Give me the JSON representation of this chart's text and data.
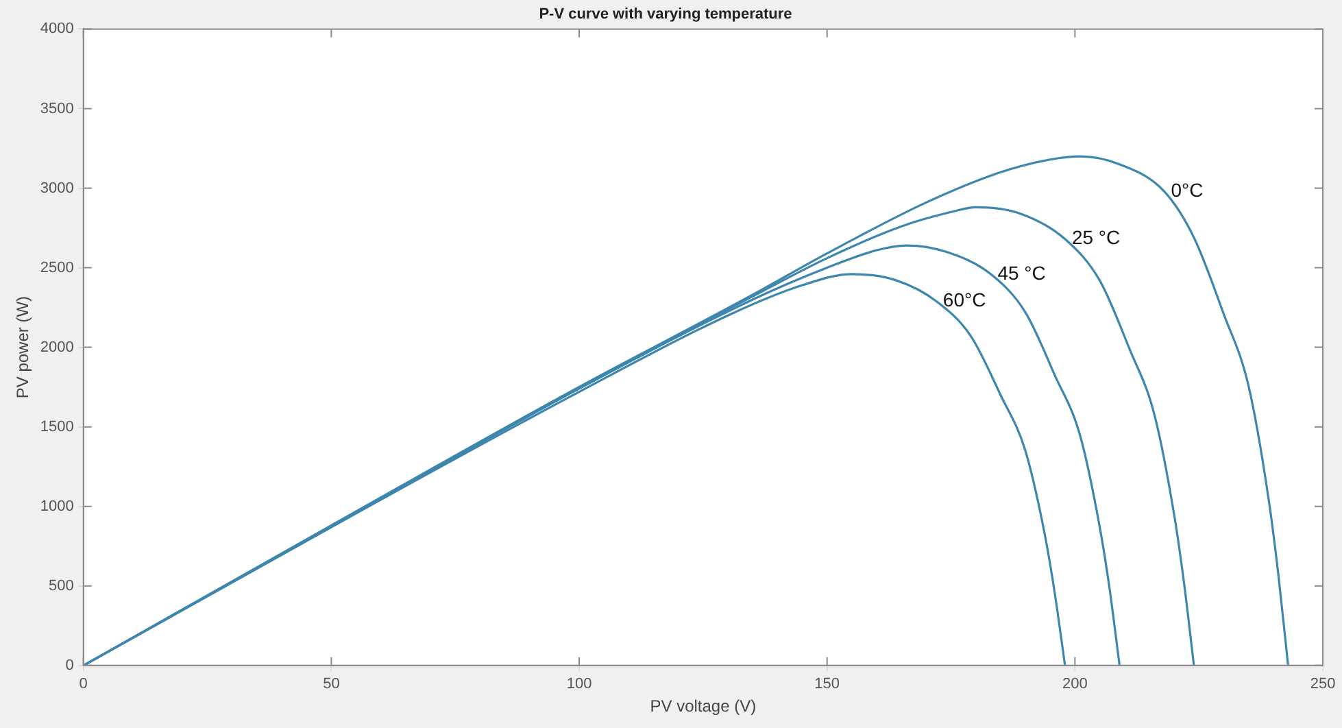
{
  "chart_data": {
    "type": "line",
    "title": "P-V curve with varying temperature",
    "xlabel": "PV voltage (V)",
    "ylabel": "PV power (W)",
    "xlim": [
      0,
      250
    ],
    "xticks": [
      0,
      50,
      100,
      150,
      200,
      250
    ],
    "ylim": [
      0,
      4000
    ],
    "yticks": [
      0,
      500,
      1000,
      1500,
      2000,
      2500,
      3000,
      3500,
      4000
    ],
    "grid": false,
    "legend": false,
    "marker": "none",
    "line_style": "solid",
    "series": [
      {
        "name": "0°C",
        "color": "#3d86ad",
        "x": [
          0,
          50,
          100,
          135,
          150,
          170,
          185,
          195,
          201,
          209,
          218,
          224,
          230,
          235,
          239,
          241,
          243
        ],
        "values": [
          0,
          880,
          1750,
          2330,
          2590,
          2910,
          3100,
          3180,
          3200,
          3150,
          2980,
          2690,
          2210,
          1760,
          1060,
          580,
          0
        ]
      },
      {
        "name": "25 °C",
        "color": "#3d86ad",
        "x": [
          0,
          50,
          100,
          135,
          150,
          165,
          175,
          180,
          189,
          198,
          205,
          211,
          216,
          220,
          222,
          224
        ],
        "values": [
          0,
          880,
          1750,
          2320,
          2560,
          2760,
          2850,
          2880,
          2840,
          2680,
          2420,
          1990,
          1580,
          950,
          520,
          0
        ]
      },
      {
        "name": "45 °C",
        "color": "#3d86ad",
        "x": [
          0,
          50,
          100,
          135,
          150,
          160,
          166,
          174,
          183,
          190,
          196,
          201,
          205,
          207,
          209
        ],
        "values": [
          0,
          870,
          1740,
          2300,
          2500,
          2610,
          2640,
          2600,
          2460,
          2220,
          1820,
          1450,
          870,
          480,
          0
        ]
      },
      {
        "name": "60°C",
        "color": "#3d86ad",
        "x": [
          0,
          50,
          100,
          130,
          145,
          155,
          164,
          172,
          179,
          185,
          190,
          194,
          196,
          198
        ],
        "values": [
          0,
          870,
          1720,
          2200,
          2390,
          2460,
          2420,
          2290,
          2070,
          1700,
          1350,
          810,
          440,
          0
        ]
      }
    ]
  }
}
